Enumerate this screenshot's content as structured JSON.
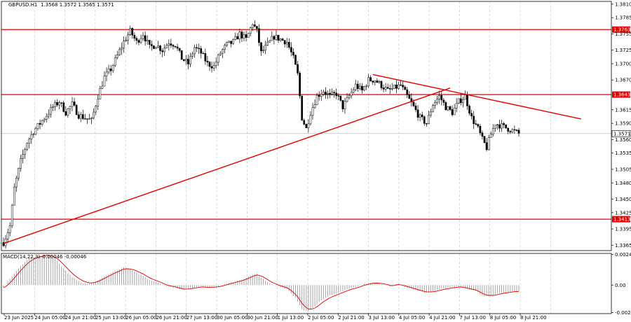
{
  "header": {
    "symbol": "GBPUSD.H1",
    "ohlc": "1.3568 1.3572 1.3565 1.3571"
  },
  "macd_header": {
    "label": "MACD(14,22,3)",
    "values": "-0.00046 -0.00046"
  },
  "chart_data": {
    "type": "candlestick",
    "instrument": "GBPUSD",
    "timeframe": "H1",
    "y_ticks": [
      "1.3810",
      "1.3785",
      "1.3755",
      "1.3725",
      "1.3700",
      "1.3670",
      "1.3643",
      "1.3615",
      "1.3590",
      "1.3571",
      "1.3560",
      "1.3535",
      "1.3505",
      "1.3480",
      "1.3450",
      "1.3425",
      "1.3413",
      "1.3395",
      "1.3365"
    ],
    "ylim": [
      1.3355,
      1.3815
    ],
    "x_ticks": [
      "23 Jun 2025",
      "24 Jun 05:00",
      "24 Jun 21:00",
      "25 Jun 13:00",
      "26 Jun 05:00",
      "26 Jun 21:00",
      "27 Jun 13:00",
      "30 Jun 05:00",
      "30 Jun 21:00",
      "1 Jul 13:00",
      "2 Jul 05:00",
      "2 Jul 21:00",
      "3 Jul 13:00",
      "4 Jul 05:00",
      "4 Jul 21:00",
      "7 Jul 13:00",
      "8 Jul 05:00",
      "8 Jul 21:00"
    ],
    "levels": [
      {
        "value": 1.3763,
        "label": "1.3763",
        "color": "#e00000"
      },
      {
        "value": 1.3643,
        "label": "1.3643",
        "color": "#e00000"
      },
      {
        "value": 1.3413,
        "label": "1.3413",
        "color": "#e00000"
      }
    ],
    "current_price": {
      "value": 1.3571,
      "label": "1.3571"
    },
    "trendlines": [
      {
        "from": {
          "bar": 0,
          "price": 1.3368
        },
        "to": {
          "bar": 208,
          "price": 1.3655
        },
        "color": "#e00000"
      },
      {
        "from": {
          "bar": 172,
          "price": 1.368
        },
        "to": {
          "bar": 269,
          "price": 1.3598
        },
        "color": "#e00000"
      }
    ],
    "close_path": [
      [
        0,
        1.337
      ],
      [
        3,
        1.34
      ],
      [
        5,
        1.347
      ],
      [
        8,
        1.352
      ],
      [
        11,
        1.3555
      ],
      [
        14,
        1.3575
      ],
      [
        17,
        1.359
      ],
      [
        20,
        1.3605
      ],
      [
        23,
        1.362
      ],
      [
        26,
        1.363
      ],
      [
        29,
        1.361
      ],
      [
        32,
        1.3625
      ],
      [
        35,
        1.3605
      ],
      [
        38,
        1.36
      ],
      [
        41,
        1.3595
      ],
      [
        44,
        1.364
      ],
      [
        47,
        1.3675
      ],
      [
        50,
        1.369
      ],
      [
        53,
        1.3715
      ],
      [
        56,
        1.374
      ],
      [
        59,
        1.376
      ],
      [
        62,
        1.374
      ],
      [
        65,
        1.3755
      ],
      [
        68,
        1.373
      ],
      [
        71,
        1.3735
      ],
      [
        74,
        1.3725
      ],
      [
        77,
        1.374
      ],
      [
        80,
        1.3735
      ],
      [
        83,
        1.371
      ],
      [
        86,
        1.37
      ],
      [
        89,
        1.373
      ],
      [
        92,
        1.372
      ],
      [
        95,
        1.37
      ],
      [
        98,
        1.3695
      ],
      [
        101,
        1.372
      ],
      [
        104,
        1.3735
      ],
      [
        107,
        1.374
      ],
      [
        110,
        1.3755
      ],
      [
        113,
        1.3745
      ],
      [
        116,
        1.3775
      ],
      [
        118,
        1.376
      ],
      [
        120,
        1.372
      ],
      [
        123,
        1.3735
      ],
      [
        126,
        1.375
      ],
      [
        129,
        1.3745
      ],
      [
        132,
        1.374
      ],
      [
        135,
        1.371
      ],
      [
        137,
        1.368
      ],
      [
        139,
        1.36
      ],
      [
        141,
        1.358
      ],
      [
        143,
        1.361
      ],
      [
        146,
        1.364
      ],
      [
        149,
        1.365
      ],
      [
        152,
        1.364
      ],
      [
        155,
        1.3645
      ],
      [
        158,
        1.362
      ],
      [
        161,
        1.364
      ],
      [
        164,
        1.366
      ],
      [
        167,
        1.365
      ],
      [
        170,
        1.367
      ],
      [
        173,
        1.367
      ],
      [
        176,
        1.366
      ],
      [
        179,
        1.365
      ],
      [
        182,
        1.3655
      ],
      [
        185,
        1.366
      ],
      [
        188,
        1.364
      ],
      [
        191,
        1.362
      ],
      [
        194,
        1.36
      ],
      [
        197,
        1.359
      ],
      [
        200,
        1.3625
      ],
      [
        203,
        1.364
      ],
      [
        206,
        1.362
      ],
      [
        209,
        1.361
      ],
      [
        212,
        1.363
      ],
      [
        215,
        1.364
      ],
      [
        218,
        1.36
      ],
      [
        221,
        1.358
      ],
      [
        223,
        1.356
      ],
      [
        225,
        1.3545
      ],
      [
        227,
        1.357
      ],
      [
        229,
        1.359
      ],
      [
        232,
        1.3585
      ],
      [
        235,
        1.358
      ],
      [
        238,
        1.3575
      ],
      [
        240,
        1.3571
      ]
    ],
    "macd": {
      "ylim": [
        -0.00225,
        0.0025
      ],
      "y_ticks": [
        "0.00242",
        "0.00",
        "-0.00217"
      ],
      "hist_path": [
        [
          0,
          -0.0002
        ],
        [
          4,
          0.0007
        ],
        [
          8,
          0.0015
        ],
        [
          12,
          0.0021
        ],
        [
          16,
          0.0023
        ],
        [
          20,
          0.0024
        ],
        [
          24,
          0.0021
        ],
        [
          28,
          0.0013
        ],
        [
          32,
          0.0006
        ],
        [
          36,
          0.0002
        ],
        [
          40,
          0.0001
        ],
        [
          44,
          0.0004
        ],
        [
          48,
          0.0008
        ],
        [
          52,
          0.0011
        ],
        [
          56,
          0.0014
        ],
        [
          60,
          0.0012
        ],
        [
          64,
          0.0008
        ],
        [
          68,
          0.0004
        ],
        [
          72,
          0.0002
        ],
        [
          76,
          -0.0001
        ],
        [
          80,
          -0.0002
        ],
        [
          84,
          -0.0004
        ],
        [
          88,
          -0.0002
        ],
        [
          92,
          -0.0001
        ],
        [
          96,
          -0.0002
        ],
        [
          100,
          -0.0001
        ],
        [
          104,
          0.0001
        ],
        [
          108,
          0.0003
        ],
        [
          112,
          0.0005
        ],
        [
          116,
          0.0008
        ],
        [
          118,
          0.0009
        ],
        [
          120,
          0.0006
        ],
        [
          124,
          0.0001
        ],
        [
          128,
          -0.0001
        ],
        [
          132,
          -0.0003
        ],
        [
          136,
          -0.001
        ],
        [
          139,
          -0.0019
        ],
        [
          142,
          -0.0021
        ],
        [
          145,
          -0.0017
        ],
        [
          148,
          -0.0012
        ],
        [
          152,
          -0.0008
        ],
        [
          156,
          -0.0006
        ],
        [
          160,
          -0.0003
        ],
        [
          164,
          -0.0002
        ],
        [
          168,
          0.0001
        ],
        [
          172,
          0.0002
        ],
        [
          176,
          0.0001
        ],
        [
          180,
          -0.0001
        ],
        [
          184,
          0.0001
        ],
        [
          188,
          -0.0002
        ],
        [
          192,
          -0.0004
        ],
        [
          196,
          -0.0006
        ],
        [
          200,
          -0.0005
        ],
        [
          204,
          -0.0003
        ],
        [
          208,
          -0.0002
        ],
        [
          212,
          -0.0001
        ],
        [
          216,
          -0.0003
        ],
        [
          220,
          -0.0005
        ],
        [
          224,
          -0.0009
        ],
        [
          228,
          -0.0008
        ],
        [
          232,
          -0.0006
        ],
        [
          236,
          -0.0005
        ],
        [
          240,
          -0.0005
        ]
      ]
    }
  },
  "colors": {
    "background": "#ffffff",
    "candle": "#000000",
    "level_line": "#e00000",
    "trendline": "#e00000",
    "macd_hist": "#9a9a9a",
    "macd_signal": "#e00000",
    "grid": "#c8c8c8"
  }
}
